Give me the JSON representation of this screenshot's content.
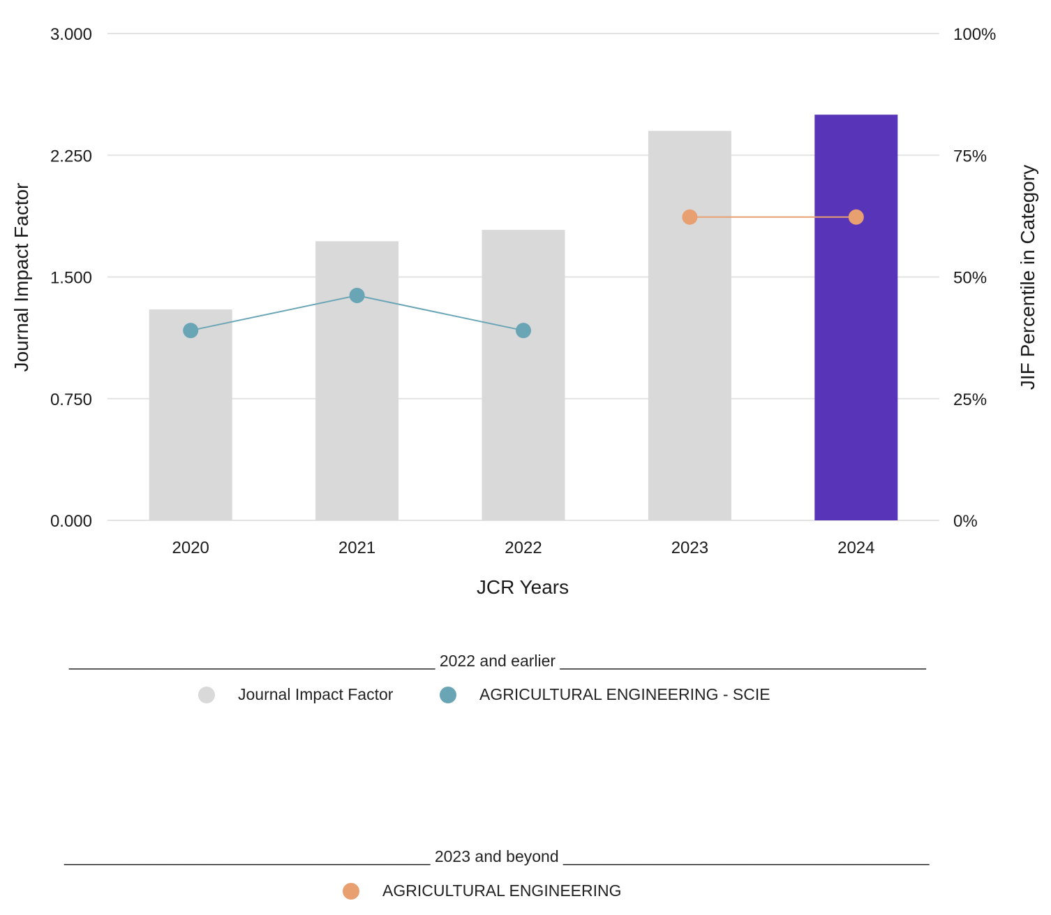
{
  "chart_data": {
    "type": "bar",
    "categories": [
      "2020",
      "2021",
      "2022",
      "2023",
      "2024"
    ],
    "xlabel": "JCR Years",
    "ylabel": "Journal Impact Factor",
    "y2label": "JIF Percentile in Category",
    "ylim": [
      0,
      3
    ],
    "y2lim": [
      0,
      100
    ],
    "yticks": [
      "0.000",
      "0.750",
      "1.500",
      "2.250",
      "3.000"
    ],
    "y2ticks": [
      "0%",
      "25%",
      "50%",
      "75%",
      "100%"
    ],
    "grid": true,
    "bars": {
      "name": "Journal Impact Factor",
      "values": [
        1.3,
        1.72,
        1.79,
        2.4,
        2.5
      ],
      "colors": [
        "#d9d9d9",
        "#d9d9d9",
        "#d9d9d9",
        "#d9d9d9",
        "#5835b8"
      ]
    },
    "lines": [
      {
        "name": "AGRICULTURAL ENGINEERING - SCIE",
        "color": "#6aa5b6",
        "categories": [
          "2020",
          "2021",
          "2022"
        ],
        "values": [
          39.0,
          46.2,
          39.0
        ]
      },
      {
        "name": "AGRICULTURAL ENGINEERING",
        "color": "#e8a070",
        "categories": [
          "2023",
          "2024"
        ],
        "values": [
          62.3,
          62.3
        ]
      }
    ]
  },
  "legend": {
    "group1": {
      "separator": "_________________________________________ 2022 and earlier _________________________________________",
      "items": [
        {
          "label": "Journal Impact Factor",
          "color": "#d9d9d9"
        },
        {
          "label": "AGRICULTURAL ENGINEERING - SCIE",
          "color": "#6aa5b6"
        }
      ]
    },
    "group2": {
      "separator": "_________________________________________ 2023 and beyond _________________________________________",
      "items": [
        {
          "label": "AGRICULTURAL ENGINEERING",
          "color": "#e8a070"
        }
      ]
    }
  }
}
